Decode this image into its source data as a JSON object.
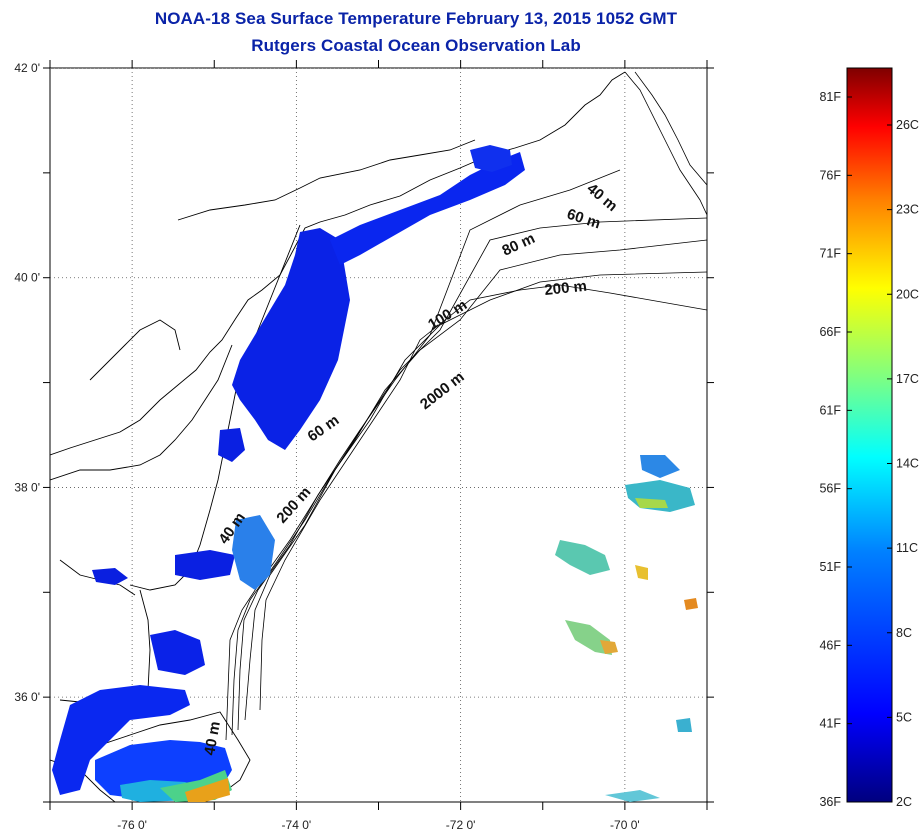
{
  "title_line1": "NOAA-18 Sea Surface Temperature February 13, 2015 1052 GMT",
  "title_line2": "Rutgers Coastal Ocean Observation Lab",
  "map": {
    "lon_range": [
      -77,
      -69
    ],
    "lat_range": [
      35,
      42
    ],
    "lat_labels": [
      {
        "lat": 42,
        "text": "42 0'"
      },
      {
        "lat": 40,
        "text": "40 0'"
      },
      {
        "lat": 38,
        "text": "38 0'"
      },
      {
        "lat": 36,
        "text": "36 0'"
      }
    ],
    "lon_labels": [
      {
        "lon": -76,
        "text": "-76 0'"
      },
      {
        "lon": -74,
        "text": "-74 0'"
      },
      {
        "lon": -72,
        "text": "-72 0'"
      },
      {
        "lon": -70,
        "text": "-70 0'"
      }
    ],
    "gridlines": true
  },
  "depth_labels": [
    "40 m",
    "60 m",
    "80 m",
    "200 m",
    "100 m",
    "2000 m",
    "60 m",
    "200 m",
    "40 m",
    "40 m"
  ],
  "colorbar": {
    "fahrenheit_labels": [
      "81F",
      "76F",
      "71F",
      "66F",
      "61F",
      "56F",
      "51F",
      "46F",
      "41F",
      "36F"
    ],
    "celsius_labels": [
      "26C",
      "23C",
      "20C",
      "17C",
      "14C",
      "11C",
      "8C",
      "5C",
      "2C"
    ],
    "colors": [
      "#00007f",
      "#0000ff",
      "#0080ff",
      "#00ffff",
      "#80ff80",
      "#ffff00",
      "#ff8000",
      "#ff0000",
      "#7f0000"
    ]
  }
}
